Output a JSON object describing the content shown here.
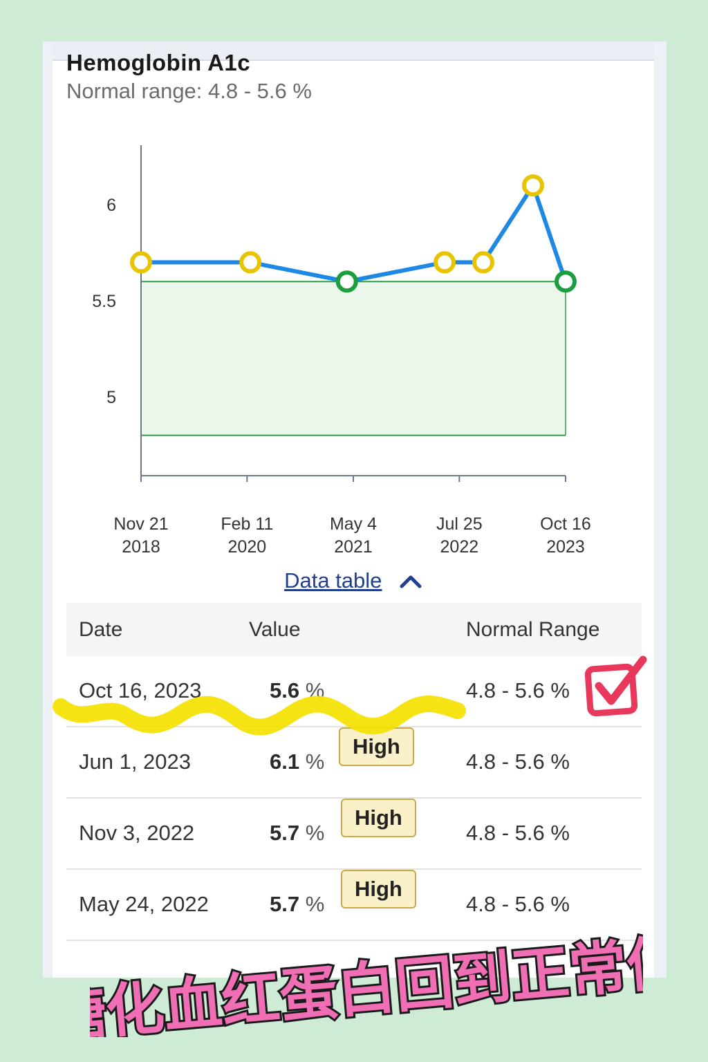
{
  "panel": {
    "title": "Hemoglobin A1c",
    "subtitle": "Normal range: 4.8 - 5.6 %",
    "data_table_link": "Data table",
    "link_icon": "chevron-up-icon"
  },
  "chart_data": {
    "type": "line",
    "title": "Hemoglobin A1c",
    "ylim": [
      4.65,
      6.35
    ],
    "yticks": [
      5,
      5.5,
      6
    ],
    "normal_range": [
      4.8,
      5.6
    ],
    "x_tick_labels": [
      {
        "line1": "Nov 21",
        "line2": "2018",
        "date": "2018-11-21"
      },
      {
        "line1": "Feb 11",
        "line2": "2020",
        "date": "2020-02-11"
      },
      {
        "line1": "May 4",
        "line2": "2021",
        "date": "2021-05-04"
      },
      {
        "line1": "Jul 25",
        "line2": "2022",
        "date": "2022-07-25"
      },
      {
        "line1": "Oct 16",
        "line2": "2023",
        "date": "2023-10-16"
      }
    ],
    "points": [
      {
        "date": "2018-11-21",
        "value": 5.7,
        "status": "high"
      },
      {
        "date": "2020-02-25",
        "value": 5.7,
        "status": "high"
      },
      {
        "date": "2021-04-07",
        "value": 5.6,
        "status": "normal"
      },
      {
        "date": "2022-05-24",
        "value": 5.7,
        "status": "high"
      },
      {
        "date": "2022-11-03",
        "value": 5.7,
        "status": "high"
      },
      {
        "date": "2023-06-01",
        "value": 6.1,
        "status": "high"
      },
      {
        "date": "2023-10-16",
        "value": 5.6,
        "status": "normal"
      }
    ],
    "colors": {
      "line": "#1e88e5",
      "high_marker": "#e8c300",
      "normal_marker": "#1b9e3e",
      "range_fill": "#eaf7ea",
      "range_stroke": "#2e9e48",
      "axis": "#6b7785"
    }
  },
  "table": {
    "headers": [
      "Date",
      "Value",
      "Normal Range"
    ],
    "rows": [
      {
        "date": "Oct 16, 2023",
        "value": "5.6",
        "unit": "%",
        "flag": "",
        "range": "4.8 - 5.6 %"
      },
      {
        "date": "Jun 1, 2023",
        "value": "6.1",
        "unit": "%",
        "flag": "High",
        "range": "4.8 - 5.6 %"
      },
      {
        "date": "Nov 3, 2022",
        "value": "5.7",
        "unit": "%",
        "flag": "High",
        "range": "4.8 - 5.6 %"
      },
      {
        "date": "May 24, 2022",
        "value": "5.7",
        "unit": "%",
        "flag": "High",
        "range": "4.8 - 5.6 %"
      }
    ]
  },
  "caption": "糖化血红蛋白回到正常值",
  "colors": {
    "background": "#cdebd5",
    "caption_fill": "#f06fb4",
    "highlighter": "#f5e100",
    "check": "#e8385c"
  }
}
